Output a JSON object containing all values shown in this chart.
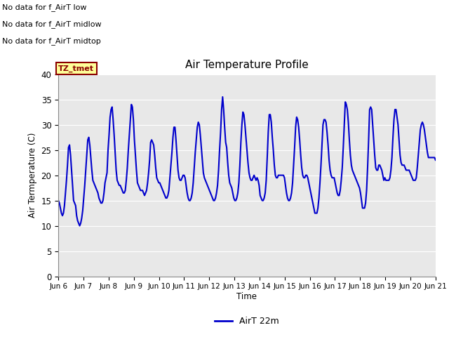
{
  "title": "Air Temperature Profile",
  "xlabel": "Time",
  "ylabel": "Air Termperature (C)",
  "line_color": "#0000cc",
  "line_width": 1.5,
  "background_color": "#e8e8e8",
  "ylim": [
    0,
    40
  ],
  "yticks": [
    0,
    5,
    10,
    15,
    20,
    25,
    30,
    35,
    40
  ],
  "legend_label": "AirT 22m",
  "legend_line_color": "#0000cc",
  "no_data_texts": [
    "No data for f_AirT low",
    "No data for f_AirT midlow",
    "No data for f_AirT midtop"
  ],
  "tz_label": "TZ_tmet",
  "xtick_labels": [
    "Jun 6",
    "Jun 7",
    "Jun 8",
    "Jun 9",
    "Jun 10",
    "Jun 11",
    "Jun 12",
    "Jun 13",
    "Jun 14",
    "Jun 15",
    "Jun 16",
    "Jun 17",
    "Jun 18",
    "Jun 19",
    "Jun 20",
    "Jun 21"
  ],
  "temperature_data": [
    15.0,
    14.5,
    13.5,
    12.5,
    12.0,
    12.5,
    14.0,
    16.5,
    19.0,
    22.0,
    25.5,
    26.0,
    24.0,
    21.0,
    18.0,
    15.0,
    14.5,
    14.0,
    12.0,
    11.0,
    10.5,
    10.0,
    10.5,
    11.5,
    13.0,
    15.5,
    18.0,
    21.0,
    24.0,
    27.0,
    27.5,
    26.0,
    23.5,
    21.0,
    19.0,
    18.5,
    18.0,
    17.5,
    17.0,
    16.5,
    15.5,
    15.0,
    14.5,
    14.5,
    15.0,
    16.5,
    18.5,
    19.5,
    20.5,
    25.0,
    28.0,
    31.5,
    33.0,
    33.5,
    31.0,
    28.0,
    24.5,
    21.0,
    19.0,
    18.5,
    18.0,
    18.0,
    17.5,
    17.0,
    16.5,
    16.5,
    17.0,
    19.0,
    21.5,
    25.0,
    28.0,
    31.0,
    34.0,
    33.5,
    31.0,
    27.0,
    24.0,
    21.0,
    18.5,
    18.0,
    17.5,
    17.0,
    17.0,
    17.0,
    16.5,
    16.0,
    16.5,
    17.0,
    18.5,
    20.5,
    23.0,
    26.5,
    27.0,
    26.5,
    26.0,
    24.0,
    21.5,
    19.5,
    19.0,
    18.5,
    18.5,
    18.0,
    17.5,
    17.0,
    16.5,
    16.0,
    15.5,
    15.5,
    16.0,
    17.0,
    19.5,
    22.0,
    24.5,
    27.5,
    29.5,
    29.5,
    27.0,
    24.0,
    21.0,
    19.5,
    19.0,
    19.0,
    19.5,
    20.0,
    20.0,
    19.5,
    18.0,
    16.5,
    15.5,
    15.0,
    15.0,
    15.5,
    16.5,
    18.5,
    21.5,
    24.5,
    27.0,
    29.5,
    30.5,
    30.0,
    28.0,
    25.5,
    23.0,
    20.5,
    19.5,
    19.0,
    18.5,
    18.0,
    17.5,
    17.0,
    16.5,
    16.0,
    15.5,
    15.0,
    15.0,
    15.5,
    16.5,
    18.0,
    21.0,
    25.0,
    28.5,
    33.0,
    35.5,
    33.0,
    29.5,
    26.5,
    25.5,
    22.5,
    20.0,
    18.5,
    18.0,
    17.5,
    16.5,
    15.5,
    15.0,
    15.0,
    15.5,
    16.5,
    18.5,
    22.0,
    26.5,
    30.0,
    32.5,
    32.0,
    30.0,
    27.5,
    25.0,
    22.5,
    20.5,
    19.5,
    19.0,
    19.0,
    19.5,
    20.0,
    19.5,
    19.0,
    19.5,
    19.0,
    18.0,
    16.0,
    15.5,
    15.0,
    15.0,
    15.5,
    16.5,
    19.0,
    23.5,
    28.5,
    32.0,
    32.0,
    30.5,
    27.5,
    25.0,
    22.0,
    20.0,
    19.5,
    19.5,
    20.0,
    20.0,
    20.0,
    20.0,
    20.0,
    20.0,
    19.5,
    18.0,
    16.5,
    15.5,
    15.0,
    15.0,
    15.5,
    16.5,
    18.5,
    22.0,
    25.5,
    29.5,
    31.5,
    31.0,
    29.5,
    27.0,
    24.0,
    21.5,
    20.0,
    19.5,
    19.5,
    20.0,
    20.0,
    19.5,
    18.5,
    17.5,
    16.5,
    15.5,
    14.5,
    13.5,
    12.5,
    12.5,
    12.5,
    13.5,
    15.5,
    18.5,
    22.0,
    26.0,
    30.0,
    31.0,
    31.0,
    30.5,
    28.5,
    26.0,
    23.0,
    21.0,
    20.0,
    19.5,
    19.5,
    19.5,
    18.5,
    17.5,
    16.5,
    16.0,
    16.0,
    17.0,
    19.0,
    21.5,
    25.5,
    30.0,
    34.5,
    34.0,
    33.0,
    30.5,
    27.0,
    24.0,
    22.0,
    21.0,
    20.5,
    20.0,
    19.5,
    19.0,
    18.5,
    18.0,
    17.5,
    16.5,
    15.0,
    13.5,
    13.5,
    13.5,
    14.5,
    17.0,
    21.5,
    27.0,
    33.0,
    33.5,
    33.0,
    30.0,
    27.0,
    24.0,
    21.5,
    21.0,
    21.0,
    22.0,
    22.0,
    21.5,
    21.0,
    20.0,
    19.0,
    19.5,
    19.0,
    19.0,
    19.0,
    19.0,
    19.5,
    21.0,
    23.5,
    27.5,
    31.0,
    33.0,
    33.0,
    31.5,
    30.0,
    27.0,
    24.0,
    22.5,
    22.0,
    22.0,
    22.0,
    21.5,
    21.0,
    21.0,
    21.0,
    21.0,
    20.5,
    20.0,
    19.5,
    19.0,
    19.0,
    19.0,
    19.5,
    21.5,
    24.0,
    26.5,
    29.0,
    30.0,
    30.5,
    30.0,
    29.0,
    27.5,
    26.0,
    24.5,
    23.5,
    23.5,
    23.5,
    23.5,
    23.5,
    23.5,
    23.5,
    23.0
  ]
}
